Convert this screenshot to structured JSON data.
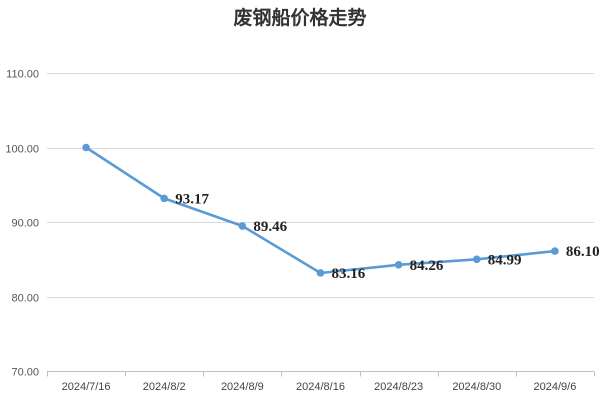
{
  "chart_data": {
    "type": "line",
    "title": "废钢船价格走势",
    "xlabel": "",
    "ylabel": "",
    "categories": [
      "2024/7/16",
      "2024/8/2",
      "2024/8/9",
      "2024/8/16",
      "2024/8/23",
      "2024/8/30",
      "2024/9/6"
    ],
    "series": [
      {
        "values": [
          100.0,
          93.17,
          89.46,
          83.16,
          84.26,
          84.99,
          86.1
        ],
        "data_labels": [
          "",
          "93.17",
          "89.46",
          "83.16",
          "84.26",
          "84.99",
          "86.10"
        ],
        "color": "#5b9bd5"
      }
    ],
    "ylim": [
      70,
      110
    ],
    "y_ticks": [
      "70.00",
      "80.00",
      "90.00",
      "100.00",
      "110.00"
    ],
    "grid": "horizontal",
    "legend": "none"
  }
}
